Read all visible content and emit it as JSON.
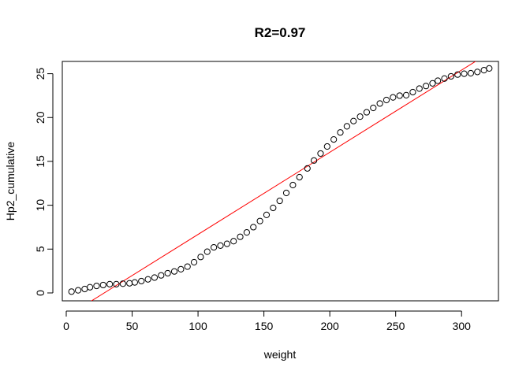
{
  "chart_data": {
    "type": "scatter",
    "title": "R2=0.97",
    "xlabel": "weight",
    "ylabel": "Hp2_cumulative",
    "xlim": [
      -3,
      328
    ],
    "ylim": [
      -0.9,
      26.4
    ],
    "xticks": [
      0,
      50,
      100,
      150,
      200,
      250,
      300
    ],
    "yticks": [
      0,
      5,
      10,
      15,
      20,
      25
    ],
    "grid": false,
    "legend": "none",
    "point_color": "#000000",
    "line_color": "#ff0000",
    "series": [
      {
        "values": [
          [
            4,
            0.15
          ],
          [
            9,
            0.3
          ],
          [
            14,
            0.45
          ],
          [
            18,
            0.65
          ],
          [
            23,
            0.8
          ],
          [
            28,
            0.9
          ],
          [
            33,
            1.0
          ],
          [
            38,
            1.0
          ],
          [
            43,
            1.05
          ],
          [
            48,
            1.1
          ],
          [
            52,
            1.2
          ],
          [
            57,
            1.35
          ],
          [
            62,
            1.55
          ],
          [
            67,
            1.75
          ],
          [
            72,
            2.0
          ],
          [
            77,
            2.25
          ],
          [
            82,
            2.45
          ],
          [
            87,
            2.7
          ],
          [
            92,
            3.0
          ],
          [
            97,
            3.5
          ],
          [
            102,
            4.1
          ],
          [
            107,
            4.7
          ],
          [
            112,
            5.2
          ],
          [
            117,
            5.4
          ],
          [
            122,
            5.6
          ],
          [
            127,
            5.9
          ],
          [
            132,
            6.4
          ],
          [
            137,
            6.9
          ],
          [
            142,
            7.5
          ],
          [
            147,
            8.2
          ],
          [
            152,
            8.9
          ],
          [
            157,
            9.7
          ],
          [
            162,
            10.5
          ],
          [
            167,
            11.4
          ],
          [
            172,
            12.3
          ],
          [
            177,
            13.2
          ],
          [
            183,
            14.2
          ],
          [
            188,
            15.1
          ],
          [
            193,
            15.9
          ],
          [
            198,
            16.7
          ],
          [
            203,
            17.5
          ],
          [
            208,
            18.3
          ],
          [
            213,
            19.0
          ],
          [
            218,
            19.6
          ],
          [
            223,
            20.1
          ],
          [
            228,
            20.6
          ],
          [
            233,
            21.1
          ],
          [
            238,
            21.6
          ],
          [
            243,
            22.0
          ],
          [
            248,
            22.3
          ],
          [
            253,
            22.5
          ],
          [
            258,
            22.55
          ],
          [
            263,
            22.9
          ],
          [
            268,
            23.3
          ],
          [
            273,
            23.6
          ],
          [
            278,
            23.9
          ],
          [
            282,
            24.2
          ],
          [
            287,
            24.45
          ],
          [
            292,
            24.7
          ],
          [
            297,
            24.9
          ],
          [
            302,
            25.0
          ],
          [
            307,
            25.05
          ],
          [
            312,
            25.2
          ],
          [
            317,
            25.4
          ],
          [
            321,
            25.6
          ]
        ]
      }
    ],
    "fit_line": {
      "slope": 0.0937,
      "intercept": -2.7
    }
  }
}
